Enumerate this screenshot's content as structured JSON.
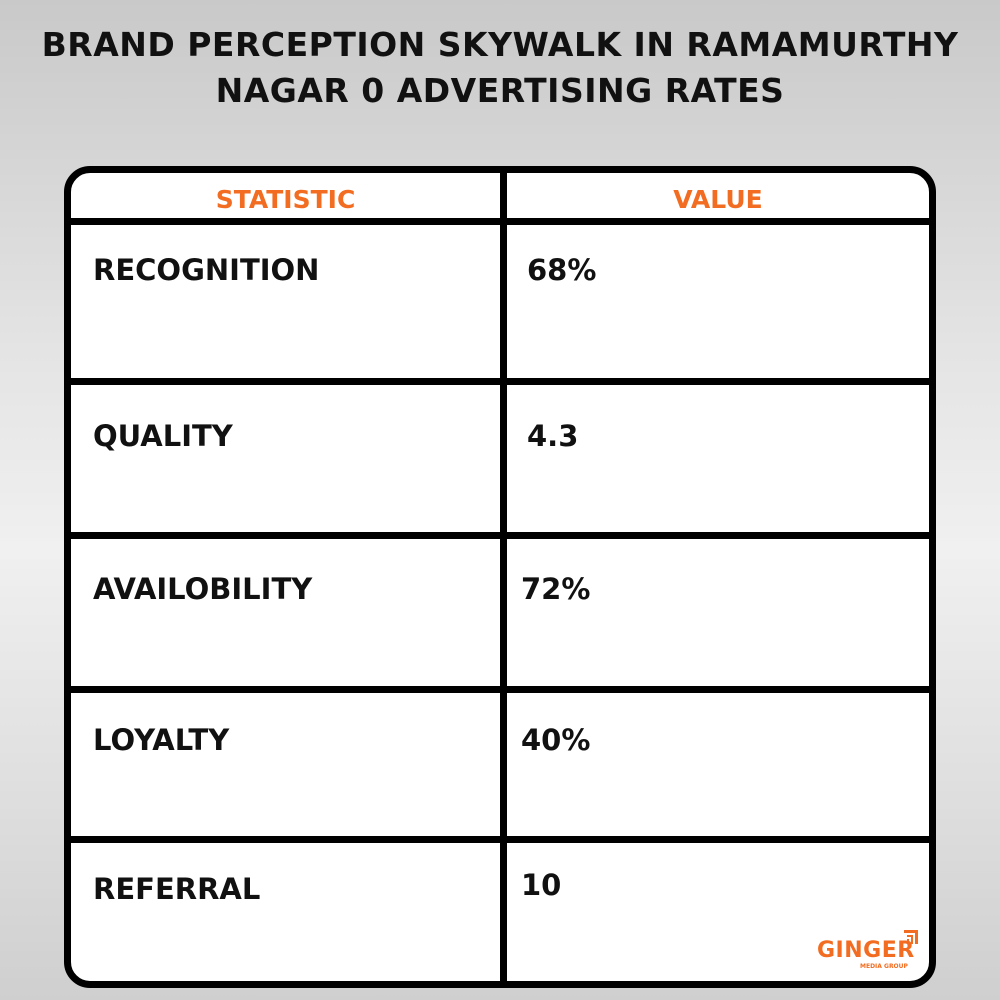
{
  "title_line1": "BRAND PERCEPTION SKYWALK IN RAMAMURTHY",
  "title_line2": "NAGAR 0 ADVERTISING RATES",
  "table": {
    "headers": [
      "STATISTIC",
      "VALUE"
    ],
    "rows": [
      {
        "statistic": "RECOGNITION",
        "value": "68%"
      },
      {
        "statistic": "QUALITY",
        "value": "4.3"
      },
      {
        "statistic": "AVAILOBILITY",
        "value": "72%"
      },
      {
        "statistic": "LOYALTY",
        "value": "40%"
      },
      {
        "statistic": "REFERRAL",
        "value": "10"
      }
    ]
  },
  "logo": {
    "name": "GINGER",
    "subtitle": "MEDIA GROUP"
  },
  "colors": {
    "accent": "#f26d21",
    "border": "#000000"
  }
}
